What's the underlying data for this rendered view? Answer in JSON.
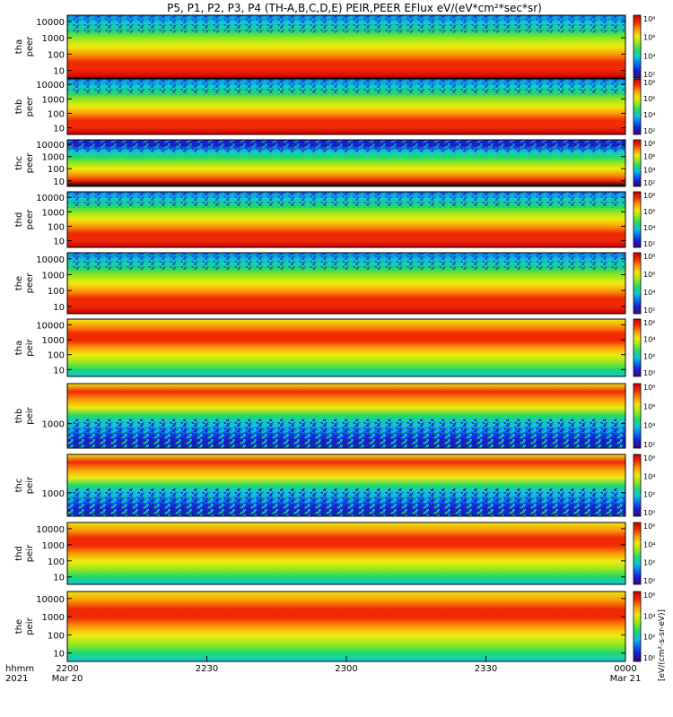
{
  "title": "P5, P1, P2, P3, P4 (TH-A,B,C,D,E) PEIR,PEER EFlux eV/(eV*cm²*sec*sr)",
  "colorbar_label": "[eV/(cm²-s-sr-eV)]",
  "colormap": [
    "#3a0a6e",
    "#1a1ad0",
    "#0a6ef0",
    "#10c8d8",
    "#22d86a",
    "#9ae81c",
    "#f0ea10",
    "#fa9a08",
    "#f02a05",
    "#c80000"
  ],
  "chart_data": {
    "type": "heatmap",
    "title": "P5, P1, P2, P3, P4 (TH-A,B,C,D,E) PEIR,PEER EFlux eV/(eV*cm²*sec*sr)",
    "x_axis": {
      "header_labels": [
        "hhmm",
        "2021"
      ],
      "ticks": [
        {
          "time": "2200",
          "date": "Mar 20"
        },
        {
          "time": "2230",
          "date": ""
        },
        {
          "time": "2300",
          "date": ""
        },
        {
          "time": "2330",
          "date": ""
        },
        {
          "time": "0000",
          "date": "Mar 21"
        }
      ],
      "range": [
        "2021-03-20 22:00",
        "2021-03-21 00:00"
      ]
    },
    "colorbar": {
      "scale": "log",
      "tick_labels": [
        "10⁸",
        "10⁶",
        "10⁴",
        "10²",
        "10⁰"
      ],
      "label": "[eV/(cm²-s-sr-eV)]"
    },
    "panels": [
      {
        "probe": "tha",
        "species": "peer",
        "y_scale": "log",
        "y_ticks": [
          "10000",
          "1000",
          "100",
          "10"
        ],
        "cbar_ticks": [
          "10⁸",
          "10⁶",
          "10⁴",
          "10²"
        ]
      },
      {
        "probe": "thb",
        "species": "peer",
        "y_scale": "log",
        "y_ticks": [
          "10000",
          "1000",
          "100",
          "10"
        ],
        "cbar_ticks": [
          "10⁸",
          "10⁶",
          "10⁴",
          "10²"
        ]
      },
      {
        "probe": "thc",
        "species": "peer",
        "y_scale": "log",
        "y_ticks": [
          "10000",
          "1000",
          "100",
          "10"
        ],
        "cbar_ticks": [
          "10⁸",
          "10⁶",
          "10⁴",
          "10²"
        ]
      },
      {
        "probe": "thd",
        "species": "peer",
        "y_scale": "log",
        "y_ticks": [
          "10000",
          "1000",
          "100",
          "10"
        ],
        "cbar_ticks": [
          "10⁸",
          "10⁶",
          "10⁴",
          "10²"
        ]
      },
      {
        "probe": "the",
        "species": "peer",
        "y_scale": "log",
        "y_ticks": [
          "10000",
          "1000",
          "100",
          "10"
        ],
        "cbar_ticks": [
          "10⁸",
          "10⁶",
          "10⁴",
          "10²"
        ]
      },
      {
        "probe": "tha",
        "species": "peir",
        "y_scale": "log",
        "y_ticks": [
          "10000",
          "1000",
          "100",
          "10"
        ],
        "cbar_ticks": [
          "10⁶",
          "10⁴",
          "10²",
          "10⁰"
        ]
      },
      {
        "probe": "thb",
        "species": "peir",
        "y_scale": "log",
        "y_ticks": [
          "1000"
        ],
        "cbar_ticks": [
          "10⁸",
          "10⁶",
          "10⁴",
          "10²"
        ]
      },
      {
        "probe": "thc",
        "species": "peir",
        "y_scale": "log",
        "y_ticks": [
          "1000"
        ],
        "cbar_ticks": [
          "10⁶",
          "10⁴",
          "10²",
          "10⁰"
        ]
      },
      {
        "probe": "thd",
        "species": "peir",
        "y_scale": "log",
        "y_ticks": [
          "10000",
          "1000",
          "100",
          "10"
        ],
        "cbar_ticks": [
          "10⁶",
          "10⁴",
          "10²",
          "10⁰"
        ]
      },
      {
        "probe": "the",
        "species": "peir",
        "y_scale": "log",
        "y_ticks": [
          "10000",
          "1000",
          "100",
          "10"
        ],
        "cbar_ticks": [
          "10⁶",
          "10⁴",
          "10²",
          "10⁰"
        ]
      }
    ]
  }
}
